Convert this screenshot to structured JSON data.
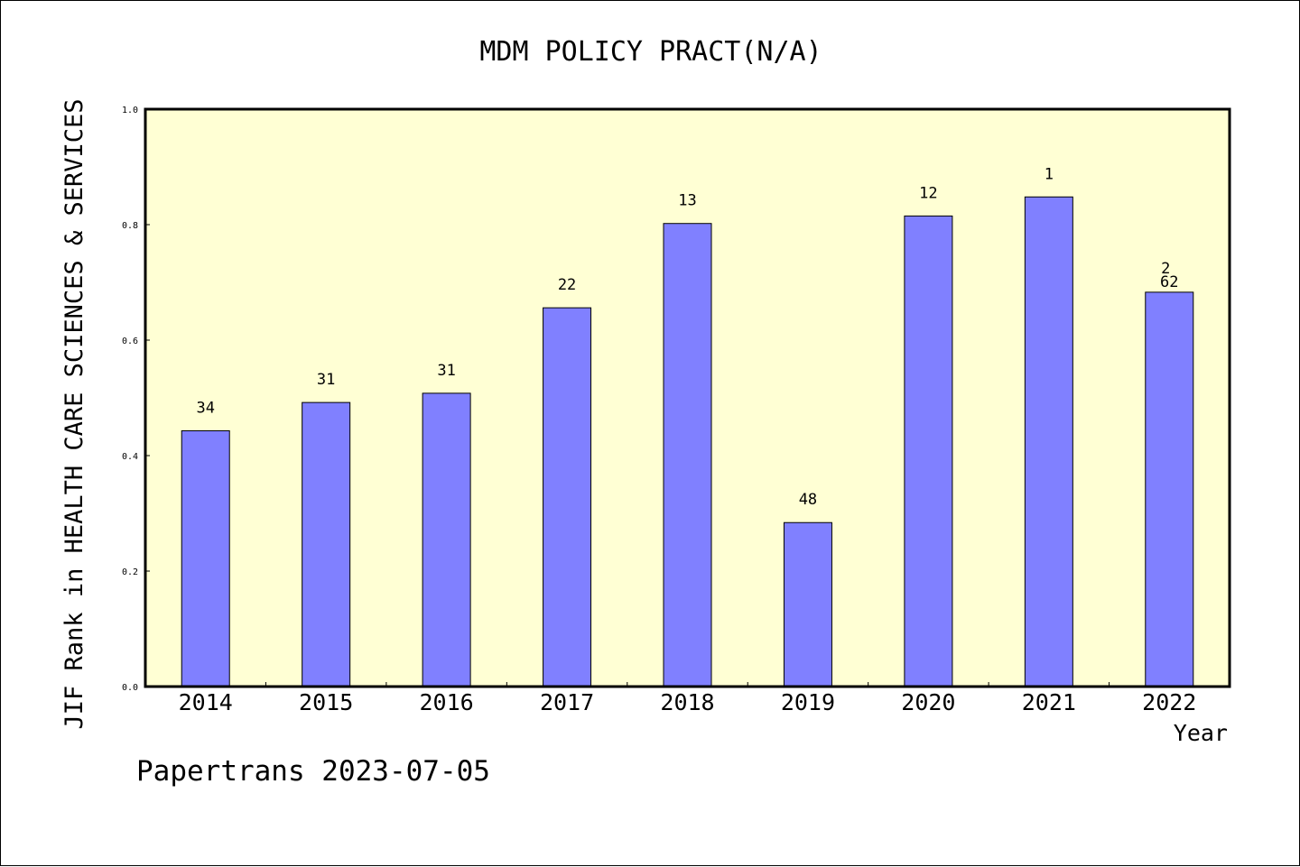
{
  "chart_data": {
    "type": "bar",
    "title": "MDM POLICY PRACT(N/A)",
    "xlabel": "Year",
    "ylabel": "JIF Rank in HEALTH CARE SCIENCES & SERVICES",
    "ylim": [
      0,
      1.0
    ],
    "yticks": [
      "0.0",
      "0.2",
      "0.4",
      "0.6",
      "0.8",
      "1.0"
    ],
    "categories": [
      "2014",
      "2015",
      "2016",
      "2017",
      "2018",
      "2019",
      "2020",
      "2021",
      "2022"
    ],
    "values": [
      0.443,
      0.492,
      0.508,
      0.656,
      0.802,
      0.284,
      0.815,
      0.848,
      0.683
    ],
    "data_labels": [
      "34",
      "31",
      "31",
      "22",
      "13",
      "48",
      "12",
      "1",
      "62"
    ],
    "extra_labels": [
      {
        "category": "2022",
        "text": "2"
      }
    ],
    "grid": false,
    "colors": {
      "plot_background": "#ffffd4",
      "bar_fill": "#8080ff",
      "bar_stroke": "#000000"
    }
  },
  "footer": "Papertrans 2023-07-05"
}
